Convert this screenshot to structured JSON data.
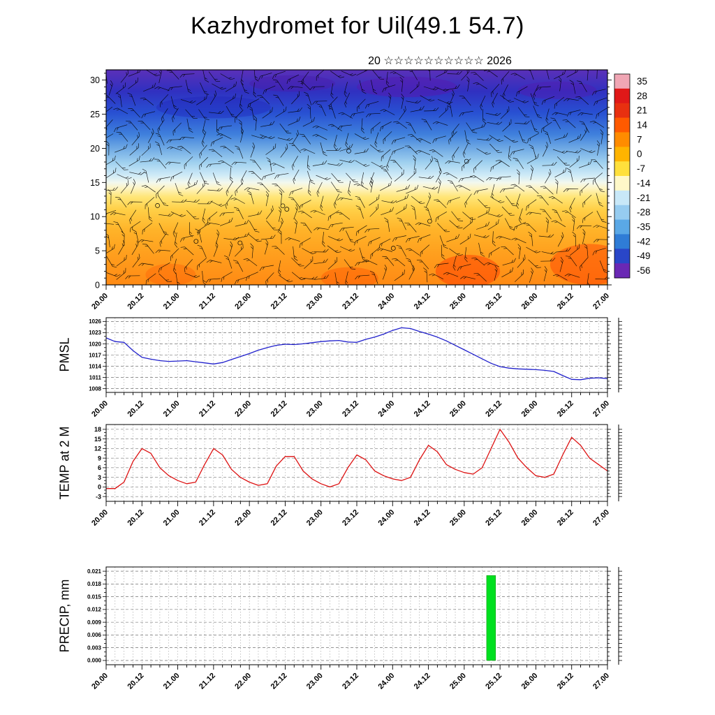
{
  "title": "Kazhydromet for Uil(49.1 54.7)",
  "subtitle": {
    "text": "20 ☆☆☆☆☆☆☆☆☆☆ 2026"
  },
  "time_axis": {
    "range": [
      20,
      27
    ],
    "minor_step_days": 0.125,
    "major_tick_values": [
      20,
      20.5,
      21,
      21.5,
      22,
      22.5,
      23,
      23.5,
      24,
      24.5,
      25,
      25.5,
      26,
      26.5,
      27
    ],
    "major_tick_labels": [
      "20.00",
      "20.12",
      "21.00",
      "21.12",
      "22.00",
      "22.12",
      "23.00",
      "23.12",
      "24.00",
      "24.12",
      "25.00",
      "25.12",
      "26.00",
      "26.12",
      "27.00"
    ]
  },
  "colorbar": {
    "levels": [
      35,
      28,
      21,
      14,
      7,
      0,
      -7,
      -14,
      -21,
      -28,
      -35,
      -42,
      -49,
      -56
    ],
    "colors": [
      "#f0a6b4",
      "#e01818",
      "#e83010",
      "#ff5a00",
      "#ff8c00",
      "#ffb400",
      "#ffe03c",
      "#fff8c8",
      "#c8e8f8",
      "#96ccf0",
      "#5aa8e6",
      "#2f7cd6",
      "#2946c8",
      "#6a28b4"
    ]
  },
  "time_points": [
    20.0,
    20.125,
    20.25,
    20.375,
    20.5,
    20.625,
    20.75,
    20.875,
    21.0,
    21.125,
    21.25,
    21.375,
    21.5,
    21.625,
    21.75,
    21.875,
    22.0,
    22.125,
    22.25,
    22.375,
    22.5,
    22.625,
    22.75,
    22.875,
    23.0,
    23.125,
    23.25,
    23.375,
    23.5,
    23.625,
    23.75,
    23.875,
    24.0,
    24.125,
    24.25,
    24.375,
    24.5,
    24.625,
    24.75,
    24.875,
    25.0,
    25.125,
    25.25,
    25.375,
    25.5,
    25.625,
    25.75,
    25.875,
    26.0,
    26.125,
    26.25,
    26.375,
    26.5,
    26.625,
    26.75,
    26.875,
    27.0
  ],
  "chart_data": [
    {
      "type": "heatmap",
      "name": "time-height cross-section: color-filled temperature (°C) with black wind barbs",
      "ylabel": "",
      "ylim": [
        0,
        30
      ],
      "yticks": [
        0,
        5,
        10,
        15,
        20,
        25,
        30
      ],
      "ytick_labels": [
        "0",
        "5",
        "10",
        "15",
        "20",
        "25",
        "30"
      ],
      "overlay": "wind-barbs",
      "gradient_stops": [
        {
          "offset": 0.0,
          "color": "#5a30b8"
        },
        {
          "offset": 0.1,
          "color": "#3030c0"
        },
        {
          "offset": 0.2,
          "color": "#2850d2"
        },
        {
          "offset": 0.3,
          "color": "#3f80dc"
        },
        {
          "offset": 0.365,
          "color": "#6fa9e4"
        },
        {
          "offset": 0.43,
          "color": "#9fd0ef"
        },
        {
          "offset": 0.49,
          "color": "#cfeaf7"
        },
        {
          "offset": 0.524,
          "color": "#f2f8ef"
        },
        {
          "offset": 0.55,
          "color": "#fdf4c4"
        },
        {
          "offset": 0.59,
          "color": "#ffe678"
        },
        {
          "offset": 0.65,
          "color": "#ffcf46"
        },
        {
          "offset": 0.75,
          "color": "#ffb228"
        },
        {
          "offset": 0.85,
          "color": "#ffa01e"
        },
        {
          "offset": 1.0,
          "color": "#ff8a14"
        }
      ],
      "cores": [
        {
          "t": 25.05,
          "h": 2,
          "rt": 0.45,
          "rh": 2.4,
          "color": "#ff3c00",
          "opacity": 0.5
        },
        {
          "t": 26.75,
          "h": 3,
          "rt": 0.55,
          "rh": 3.0,
          "color": "#ff3c00",
          "opacity": 0.45
        },
        {
          "t": 23.4,
          "h": 1,
          "rt": 0.4,
          "rh": 1.6,
          "color": "#ff5000",
          "opacity": 0.4
        },
        {
          "t": 20.9,
          "h": 1.5,
          "rt": 0.35,
          "rh": 1.6,
          "color": "#ff5000",
          "opacity": 0.3
        },
        {
          "t": 24.2,
          "h": 29,
          "rt": 0.7,
          "rh": 1.5,
          "color": "#5518b0",
          "opacity": 0.5
        },
        {
          "t": 26.3,
          "h": 28.5,
          "rt": 0.55,
          "rh": 1.3,
          "color": "#5518b0",
          "opacity": 0.4
        },
        {
          "t": 21.5,
          "h": 26,
          "rt": 0.8,
          "rh": 1.6,
          "color": "#2020b8",
          "opacity": 0.35
        },
        {
          "t": 22.6,
          "h": 29.5,
          "rt": 0.6,
          "rh": 1.2,
          "color": "#4a18a8",
          "opacity": 0.4
        }
      ]
    },
    {
      "type": "line",
      "ylabel": "PMSL",
      "color": "#2020cc",
      "ylim": [
        1008,
        1026
      ],
      "yticks": [
        1008,
        1011,
        1014,
        1017,
        1020,
        1023,
        1026
      ],
      "ytick_labels": [
        "1008",
        "1011",
        "1014",
        "1017",
        "1020",
        "1023",
        "1026"
      ],
      "values": [
        1021.6,
        1020.6,
        1020.4,
        1018.2,
        1016.4,
        1015.9,
        1015.5,
        1015.3,
        1015.4,
        1015.5,
        1015.2,
        1014.9,
        1014.6,
        1015.0,
        1015.8,
        1016.6,
        1017.4,
        1018.3,
        1019.0,
        1019.6,
        1019.9,
        1019.8,
        1020.0,
        1020.3,
        1020.6,
        1020.8,
        1020.9,
        1020.5,
        1020.4,
        1021.2,
        1021.8,
        1022.6,
        1023.6,
        1024.3,
        1024.1,
        1023.3,
        1022.6,
        1021.8,
        1020.8,
        1019.6,
        1018.4,
        1017.2,
        1016.0,
        1014.8,
        1013.9,
        1013.5,
        1013.3,
        1013.2,
        1013.1,
        1012.9,
        1012.6,
        1011.5,
        1010.5,
        1010.4,
        1010.8,
        1010.9,
        1010.7
      ]
    },
    {
      "type": "line",
      "ylabel": "TEMP at 2 M",
      "color": "#dd1111",
      "ylim": [
        -3,
        18
      ],
      "yticks": [
        -3,
        0,
        3,
        6,
        9,
        12,
        15,
        18
      ],
      "ytick_labels": [
        "-3",
        "0",
        "3",
        "6",
        "9",
        "12",
        "15",
        "18"
      ],
      "values": [
        -0.5,
        -0.5,
        1.5,
        8,
        12,
        10.5,
        6,
        3.5,
        2,
        1,
        1.5,
        7,
        12,
        10,
        5.5,
        3,
        1.5,
        0.5,
        1,
        6.5,
        9.5,
        9.5,
        5,
        2.5,
        1,
        0,
        1,
        6,
        10,
        8.5,
        5,
        3.5,
        2.5,
        2,
        3,
        8.5,
        13,
        11,
        7,
        5.5,
        4.5,
        4,
        6,
        12,
        18,
        14,
        9,
        6,
        3.5,
        3,
        4,
        10,
        15.5,
        13,
        9,
        7,
        5
      ]
    },
    {
      "type": "bar",
      "ylabel": "PRECIP, mm",
      "color": "#00e020",
      "ylim": [
        0,
        0.021
      ],
      "yticks": [
        0,
        0.003,
        0.006,
        0.009,
        0.012,
        0.015,
        0.018,
        0.021
      ],
      "ytick_labels": [
        "0.000",
        "0.003",
        "0.006",
        "0.009",
        "0.012",
        "0.015",
        "0.018",
        "0.021"
      ],
      "bars": [
        {
          "t": 25.375,
          "value": 0.02
        }
      ],
      "default_value": 0
    }
  ]
}
